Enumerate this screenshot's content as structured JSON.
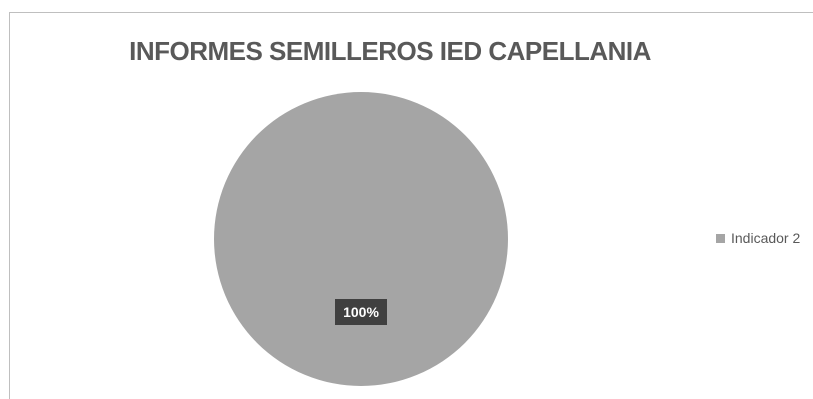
{
  "chart_data": {
    "type": "pie",
    "title": "INFORMES SEMILLEROS IED CAPELLANIA",
    "categories": [
      "Indicador 2"
    ],
    "values": [
      100
    ],
    "data_labels": [
      "100%"
    ],
    "legend_position": "right",
    "colors": {
      "slice": "#a5a5a5",
      "label_box": "#404040",
      "label_text": "#ffffff",
      "title_text": "#595959"
    }
  }
}
